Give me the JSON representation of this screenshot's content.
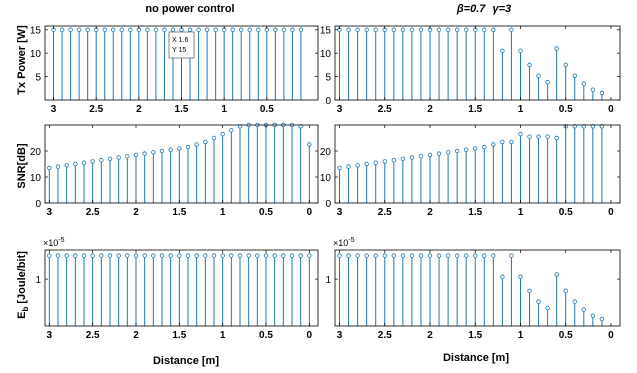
{
  "titles": {
    "left": "no power control",
    "right_beta": "β=0.7",
    "right_gamma": "γ=3"
  },
  "ylabels": {
    "row1": "Tx Power [W]",
    "row2": "SNR[dB]",
    "row3_main": "[Joule/bit]",
    "row3_symbol": "E",
    "row3_sub": "b"
  },
  "xlabel": "Distance [m]",
  "exponent_label": {
    "base": "×10",
    "power": "-5"
  },
  "datatip": {
    "x_text": "X 1.6",
    "y_text": "Y 15"
  },
  "colors": {
    "stem": "#1f77b4",
    "axis": "#000000"
  },
  "chart_data": [
    {
      "id": "tx-left",
      "type": "stem",
      "xlim": [
        3.1,
        -0.1
      ],
      "ylim": [
        0,
        15.8
      ],
      "xticks": [
        3,
        2.5,
        2,
        1.5,
        1,
        0.5
      ],
      "xtick_labels": [
        "3",
        "2.5",
        "2",
        "1.5",
        "1",
        "0.5"
      ],
      "yticks": [
        5,
        10,
        15
      ],
      "ytick_labels": [
        "5",
        "10",
        "15"
      ],
      "x": [
        3.0,
        2.9,
        2.8,
        2.7,
        2.6,
        2.5,
        2.4,
        2.3,
        2.2,
        2.1,
        2.0,
        1.9,
        1.8,
        1.7,
        1.6,
        1.5,
        1.4,
        1.3,
        1.2,
        1.1,
        1.0,
        0.9,
        0.8,
        0.7,
        0.6,
        0.5,
        0.4,
        0.3,
        0.2,
        0.1
      ],
      "y": [
        15,
        15,
        15,
        15,
        15,
        15,
        15,
        15,
        15,
        15,
        15,
        15,
        15,
        15,
        15,
        15,
        15,
        15,
        15,
        15,
        15,
        15,
        15,
        15,
        15,
        15,
        15,
        15,
        15,
        15
      ]
    },
    {
      "id": "tx-right",
      "type": "stem",
      "xlim": [
        3.05,
        -0.1
      ],
      "ylim": [
        0,
        15.8
      ],
      "xticks": [
        3,
        2.5,
        2,
        1.5,
        1,
        0.5,
        0
      ],
      "xtick_labels": [
        "3",
        "2.5",
        "2",
        "1.5",
        "1",
        "0.5",
        "0"
      ],
      "yticks": [
        0,
        5,
        10,
        15
      ],
      "ytick_labels": [
        "0",
        "5",
        "10",
        "15"
      ],
      "x": [
        3.0,
        2.9,
        2.8,
        2.7,
        2.6,
        2.5,
        2.4,
        2.3,
        2.2,
        2.1,
        2.0,
        1.9,
        1.8,
        1.7,
        1.6,
        1.5,
        1.4,
        1.3,
        1.2,
        1.1,
        1.0,
        0.9,
        0.8,
        0.7,
        0.6,
        0.5,
        0.4,
        0.3,
        0.2,
        0.1
      ],
      "y": [
        15,
        15,
        15,
        15,
        15,
        15,
        15,
        15,
        15,
        15,
        15,
        15,
        15,
        15,
        15,
        15,
        15,
        15,
        10.5,
        15,
        10.5,
        7.5,
        5.2,
        3.8,
        11,
        7.5,
        5.2,
        3.5,
        2.2,
        1.5
      ]
    },
    {
      "id": "snr-left",
      "type": "stem",
      "xlim": [
        3.05,
        -0.1
      ],
      "ylim": [
        0,
        30
      ],
      "xticks": [
        3,
        2.5,
        2,
        1.5,
        1,
        0.5,
        0
      ],
      "xtick_labels": [
        "3",
        "2.5",
        "2",
        "1.5",
        "1",
        "0.5",
        "0"
      ],
      "yticks": [
        0,
        10,
        20
      ],
      "ytick_labels": [
        "0",
        "10",
        "20"
      ],
      "x": [
        3.0,
        2.9,
        2.8,
        2.7,
        2.6,
        2.5,
        2.4,
        2.3,
        2.2,
        2.1,
        2.0,
        1.9,
        1.8,
        1.7,
        1.6,
        1.5,
        1.4,
        1.3,
        1.2,
        1.1,
        1.0,
        0.9,
        0.8,
        0.7,
        0.6,
        0.5,
        0.4,
        0.3,
        0.2,
        0.1,
        0.0
      ],
      "y": [
        13.5,
        14,
        14.5,
        15,
        15.5,
        16,
        16.5,
        17,
        17.5,
        18,
        18.5,
        19,
        19.5,
        20,
        20.5,
        21,
        21.5,
        22.5,
        23.5,
        25,
        26.5,
        28,
        29.5,
        30,
        30,
        30,
        30,
        30,
        30,
        29.5,
        22.5
      ]
    },
    {
      "id": "snr-right",
      "type": "stem",
      "xlim": [
        3.05,
        -0.1
      ],
      "ylim": [
        0,
        30
      ],
      "xticks": [
        3,
        2.5,
        2,
        1.5,
        1,
        0.5,
        0
      ],
      "xtick_labels": [
        "3",
        "2.5",
        "2",
        "1.5",
        "1",
        "0.5",
        "0"
      ],
      "yticks": [
        0,
        10,
        20
      ],
      "ytick_labels": [
        "0",
        "10",
        "20"
      ],
      "x": [
        3.0,
        2.9,
        2.8,
        2.7,
        2.6,
        2.5,
        2.4,
        2.3,
        2.2,
        2.1,
        2.0,
        1.9,
        1.8,
        1.7,
        1.6,
        1.5,
        1.4,
        1.3,
        1.2,
        1.1,
        1.0,
        0.9,
        0.8,
        0.7,
        0.6,
        0.5,
        0.4,
        0.3,
        0.2,
        0.1
      ],
      "y": [
        13.5,
        14,
        14.5,
        15,
        15.5,
        16,
        16.5,
        17,
        17.5,
        18,
        18.5,
        19,
        19.5,
        20,
        20.5,
        21,
        21.5,
        22.5,
        23.5,
        23.5,
        26.5,
        25.5,
        25.5,
        25.5,
        25,
        29.5,
        29.5,
        29.5,
        29.5,
        29.5
      ]
    },
    {
      "id": "eb-left",
      "type": "stem",
      "xlim": [
        3.05,
        -0.1
      ],
      "ylim": [
        0,
        1.62
      ],
      "xticks": [
        3,
        2.5,
        2,
        1.5,
        1,
        0.5,
        0
      ],
      "xtick_labels": [
        "3",
        "2.5",
        "2",
        "1.5",
        "1",
        "0.5",
        "0"
      ],
      "yticks": [
        1
      ],
      "ytick_labels": [
        "1"
      ],
      "x": [
        3.0,
        2.9,
        2.8,
        2.7,
        2.6,
        2.5,
        2.4,
        2.3,
        2.2,
        2.1,
        2.0,
        1.9,
        1.8,
        1.7,
        1.6,
        1.5,
        1.4,
        1.3,
        1.2,
        1.1,
        1.0,
        0.9,
        0.8,
        0.7,
        0.6,
        0.5,
        0.4,
        0.3,
        0.2,
        0.1,
        0.0
      ],
      "y": [
        1.5,
        1.5,
        1.5,
        1.5,
        1.5,
        1.5,
        1.5,
        1.5,
        1.5,
        1.5,
        1.5,
        1.5,
        1.5,
        1.5,
        1.5,
        1.5,
        1.5,
        1.5,
        1.5,
        1.5,
        1.5,
        1.5,
        1.5,
        1.5,
        1.5,
        1.5,
        1.5,
        1.5,
        1.5,
        1.5,
        1.5
      ]
    },
    {
      "id": "eb-right",
      "type": "stem",
      "xlim": [
        3.05,
        -0.1
      ],
      "ylim": [
        0,
        1.62
      ],
      "xticks": [
        3,
        2.5,
        2,
        1.5,
        1,
        0.5,
        0
      ],
      "xtick_labels": [
        "3",
        "2.5",
        "2",
        "1.5",
        "1",
        "0.5",
        "0"
      ],
      "yticks": [
        1
      ],
      "ytick_labels": [
        "1"
      ],
      "x": [
        3.0,
        2.9,
        2.8,
        2.7,
        2.6,
        2.5,
        2.4,
        2.3,
        2.2,
        2.1,
        2.0,
        1.9,
        1.8,
        1.7,
        1.6,
        1.5,
        1.4,
        1.3,
        1.2,
        1.1,
        1.0,
        0.9,
        0.8,
        0.7,
        0.6,
        0.5,
        0.4,
        0.3,
        0.2,
        0.1
      ],
      "y": [
        1.5,
        1.5,
        1.5,
        1.5,
        1.5,
        1.5,
        1.5,
        1.5,
        1.5,
        1.5,
        1.5,
        1.5,
        1.5,
        1.5,
        1.5,
        1.5,
        1.5,
        1.5,
        1.05,
        1.5,
        1.05,
        0.75,
        0.52,
        0.38,
        1.1,
        0.75,
        0.52,
        0.35,
        0.22,
        0.15
      ]
    }
  ]
}
